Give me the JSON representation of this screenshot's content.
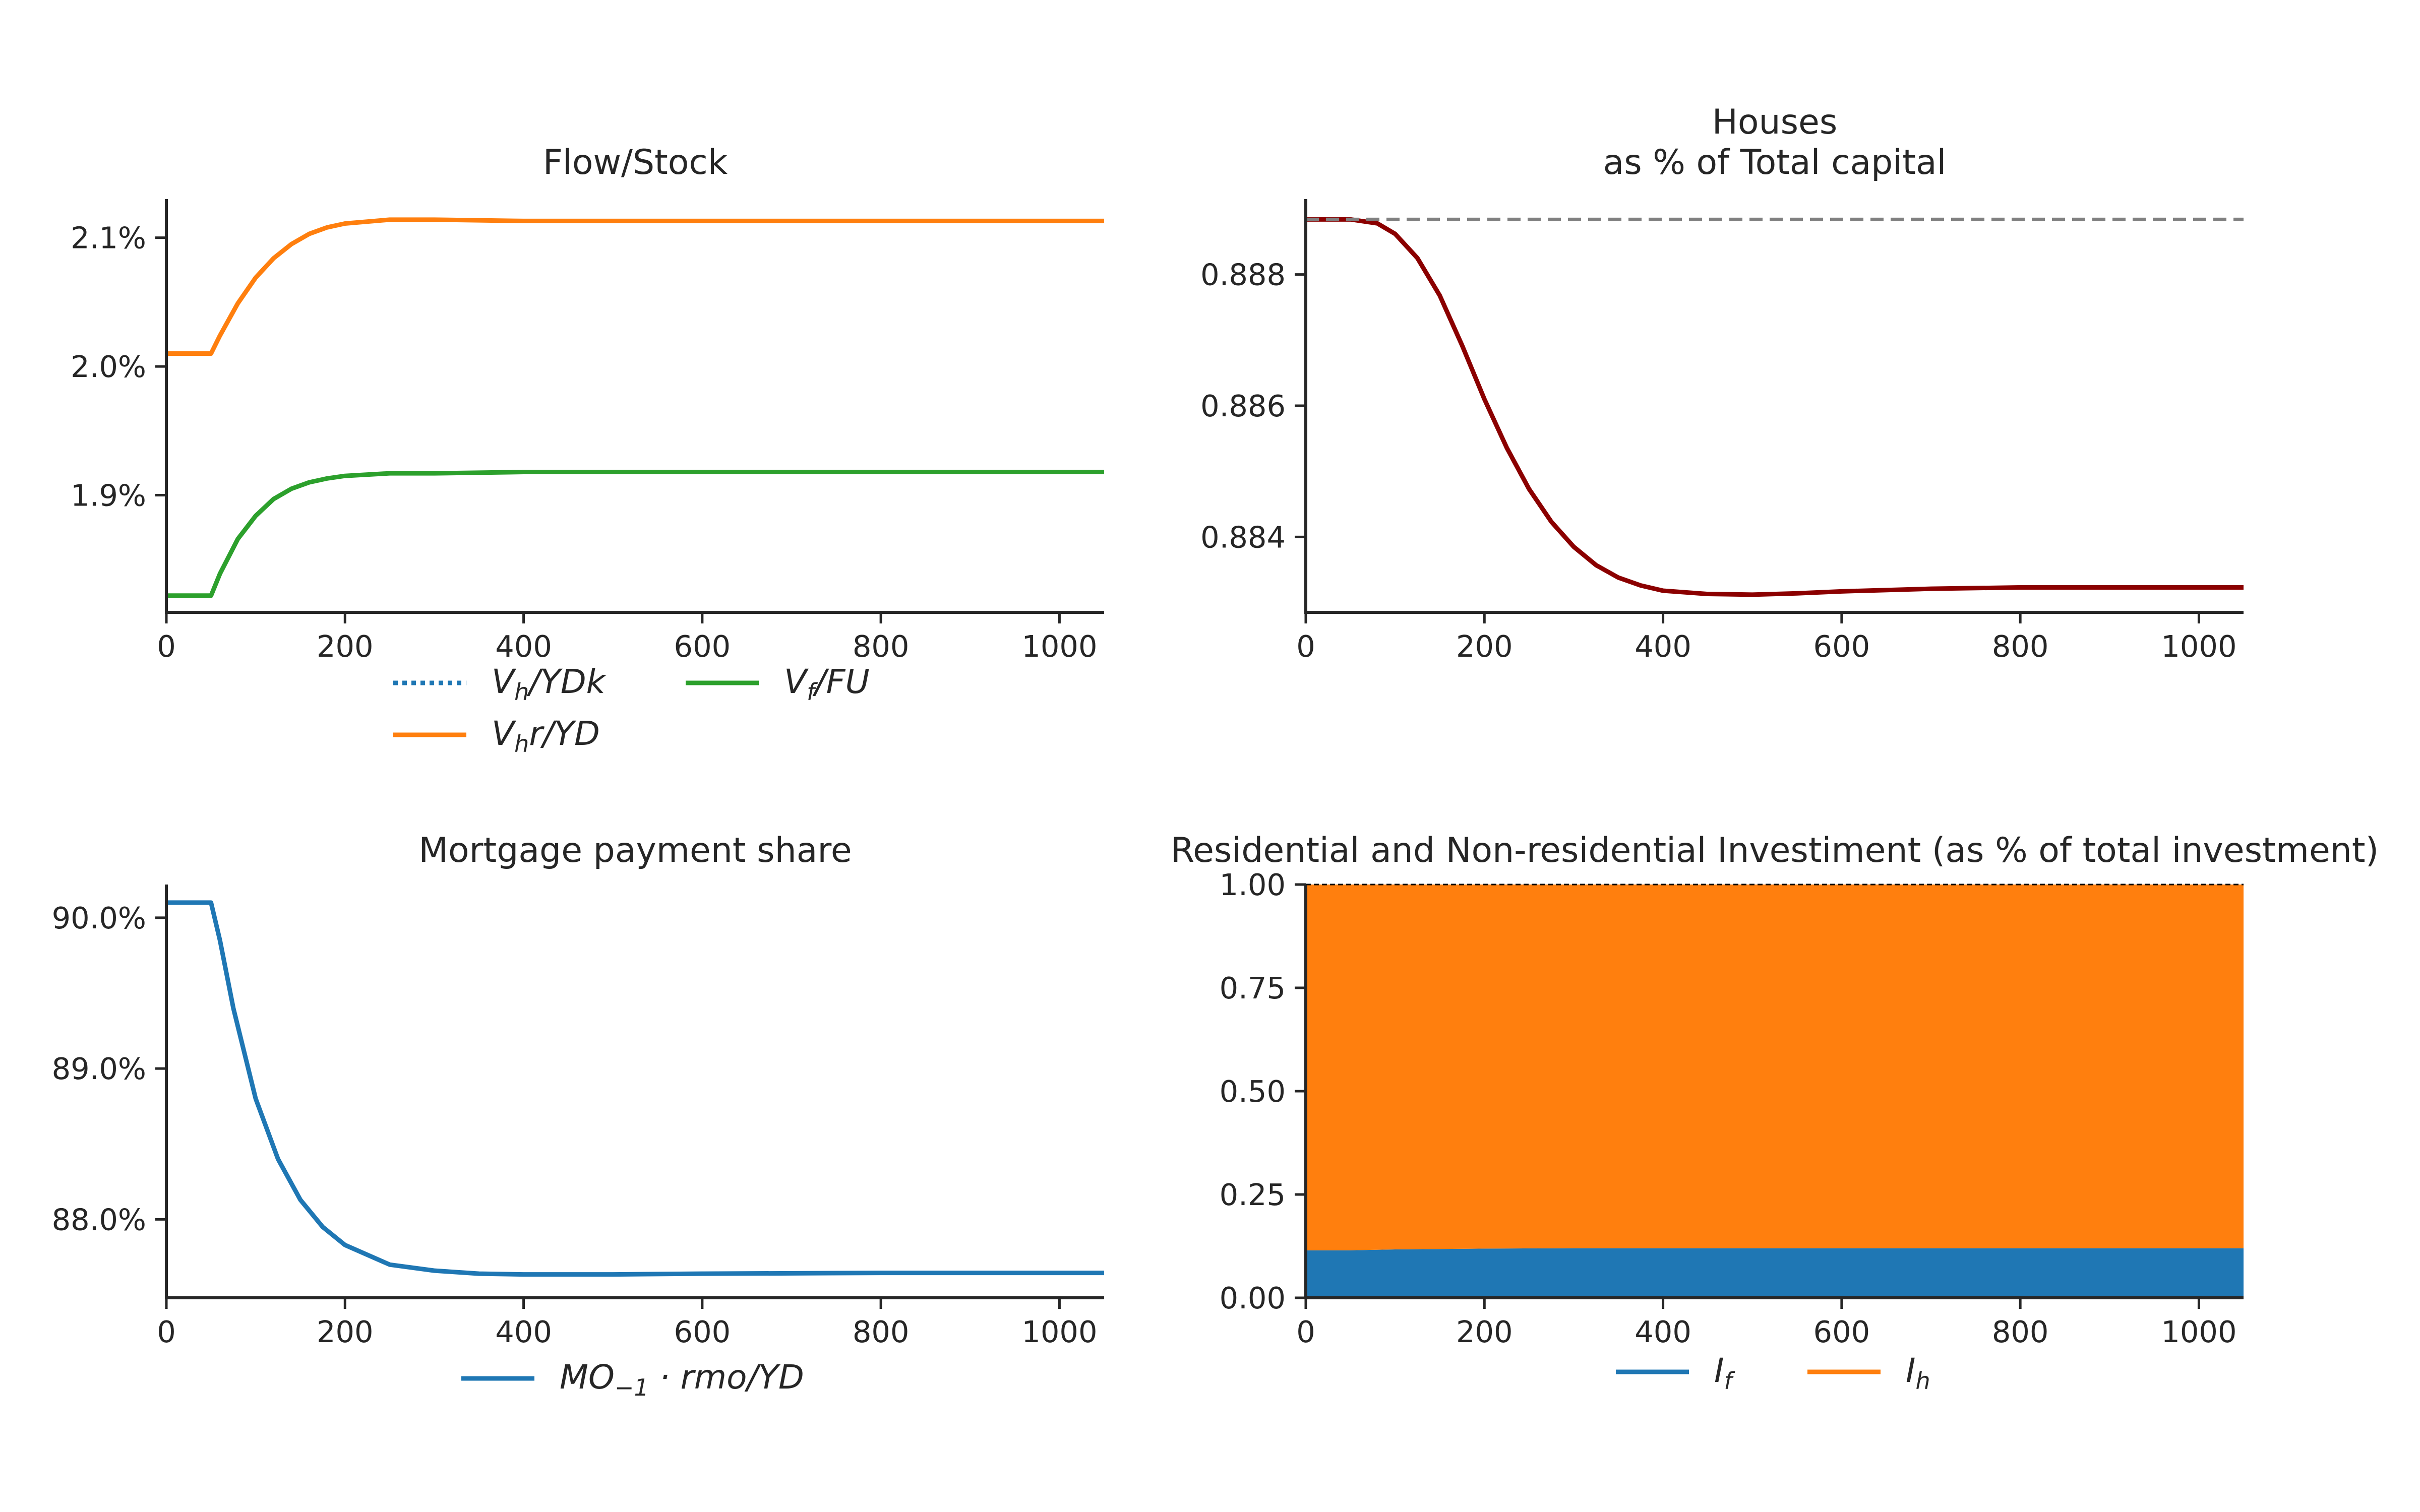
{
  "chart_data": [
    {
      "type": "line",
      "title": "Flow/Stock",
      "xlabel": "",
      "ylabel": "",
      "xlim": [
        0,
        1050
      ],
      "ylim": [
        1.809,
        2.13
      ],
      "x_ticks": [
        0,
        200,
        400,
        600,
        800,
        1000
      ],
      "x_tick_labels": [
        "0",
        "200",
        "400",
        "600",
        "800",
        "1000"
      ],
      "y_ticks": [
        1.9,
        2.0,
        2.1
      ],
      "y_tick_labels": [
        "1.9%",
        "2.0%",
        "2.1%"
      ],
      "grid": false,
      "legend_position": "below",
      "series": [
        {
          "name": "V_h/YDk",
          "legend_main": "V",
          "legend_sub": "h",
          "legend_rest": "/YDk",
          "color": "#1f77b4",
          "style": "dotted",
          "x": [],
          "values": []
        },
        {
          "name": "V_h r/YD",
          "legend_main": "V",
          "legend_sub": "h",
          "legend_rest": "r/YD",
          "color": "#ff7f0e",
          "style": "solid",
          "x": [
            0,
            50,
            60,
            80,
            100,
            120,
            140,
            160,
            180,
            200,
            250,
            300,
            400,
            600,
            800,
            1000,
            1050
          ],
          "values": [
            2.01,
            2.01,
            2.024,
            2.049,
            2.069,
            2.084,
            2.095,
            2.103,
            2.108,
            2.111,
            2.114,
            2.114,
            2.113,
            2.113,
            2.113,
            2.113,
            2.113
          ]
        },
        {
          "name": "V_f/FU",
          "legend_main": "V",
          "legend_sub": "f",
          "legend_rest": "/FU",
          "color": "#2ca02c",
          "style": "solid",
          "x": [
            0,
            50,
            60,
            80,
            100,
            120,
            140,
            160,
            180,
            200,
            250,
            300,
            400,
            600,
            800,
            1000,
            1050
          ],
          "values": [
            1.822,
            1.822,
            1.839,
            1.866,
            1.884,
            1.897,
            1.905,
            1.91,
            1.913,
            1.915,
            1.917,
            1.917,
            1.918,
            1.918,
            1.918,
            1.918,
            1.918
          ]
        }
      ]
    },
    {
      "type": "line",
      "title": "Houses",
      "subtitle": "as % of Total capital",
      "xlabel": "",
      "ylabel": "",
      "xlim": [
        0,
        1050
      ],
      "ylim": [
        0.88285,
        0.88915
      ],
      "x_ticks": [
        0,
        200,
        400,
        600,
        800,
        1000
      ],
      "x_tick_labels": [
        "0",
        "200",
        "400",
        "600",
        "800",
        "1000"
      ],
      "y_ticks": [
        0.884,
        0.886,
        0.888
      ],
      "y_tick_labels": [
        "0.884",
        "0.886",
        "0.888"
      ],
      "grid": false,
      "series": [
        {
          "color": "#8b0000",
          "style": "solid",
          "x": [
            0,
            50,
            80,
            100,
            125,
            150,
            175,
            200,
            225,
            250,
            275,
            300,
            325,
            350,
            375,
            400,
            450,
            500,
            550,
            600,
            700,
            800,
            900,
            1000,
            1050
          ],
          "values": [
            0.88884,
            0.88884,
            0.88878,
            0.88862,
            0.88825,
            0.88768,
            0.88692,
            0.8861,
            0.88536,
            0.88473,
            0.88423,
            0.88385,
            0.88357,
            0.88338,
            0.88326,
            0.88318,
            0.88313,
            0.88312,
            0.88314,
            0.88317,
            0.88321,
            0.88323,
            0.88323,
            0.88323,
            0.88323
          ]
        },
        {
          "color": "#808080",
          "style": "dashed",
          "x": [
            0,
            1050
          ],
          "values": [
            0.88884,
            0.88884
          ]
        }
      ]
    },
    {
      "type": "line",
      "title": "Mortgage payment share",
      "xlabel": "",
      "ylabel": "",
      "xlim": [
        0,
        1050
      ],
      "ylim": [
        87.48,
        90.22
      ],
      "x_ticks": [
        0,
        200,
        400,
        600,
        800,
        1000
      ],
      "x_tick_labels": [
        "0",
        "200",
        "400",
        "600",
        "800",
        "1000"
      ],
      "y_ticks": [
        88.0,
        89.0,
        90.0
      ],
      "y_tick_labels": [
        "88.0%",
        "89.0%",
        "90.0%"
      ],
      "grid": false,
      "legend_position": "below",
      "series": [
        {
          "name": "MO_{-1} · rmo/YD",
          "legend_main": "MO",
          "legend_sub": "−1",
          "legend_rest": " · rmo/YD",
          "color": "#1f77b4",
          "style": "solid",
          "x": [
            0,
            50,
            60,
            75,
            100,
            125,
            150,
            175,
            200,
            250,
            300,
            350,
            400,
            450,
            500,
            600,
            800,
            1000,
            1050
          ],
          "values": [
            90.1,
            90.1,
            89.85,
            89.4,
            88.8,
            88.4,
            88.13,
            87.95,
            87.83,
            87.7,
            87.66,
            87.64,
            87.635,
            87.635,
            87.635,
            87.64,
            87.645,
            87.645,
            87.645
          ]
        }
      ]
    },
    {
      "type": "area",
      "title": "Residential and Non-residential Investiment (as % of total investment)",
      "xlabel": "",
      "ylabel": "",
      "xlim": [
        0,
        1050
      ],
      "ylim": [
        0.0,
        1.0
      ],
      "x_ticks": [
        0,
        200,
        400,
        600,
        800,
        1000
      ],
      "x_tick_labels": [
        "0",
        "200",
        "400",
        "600",
        "800",
        "1000"
      ],
      "y_ticks": [
        0.0,
        0.25,
        0.5,
        0.75,
        1.0
      ],
      "y_tick_labels": [
        "0.00",
        "0.25",
        "0.50",
        "0.75",
        "1.00"
      ],
      "grid": false,
      "legend_position": "below",
      "stacked": true,
      "reference_line": 1.0,
      "series": [
        {
          "name": "I_f",
          "legend_main": "I",
          "legend_sub": "f",
          "legend_rest": "",
          "color": "#1f77b4",
          "x": [
            0,
            50,
            100,
            200,
            300,
            400,
            600,
            800,
            1000,
            1050
          ],
          "values": [
            0.115,
            0.115,
            0.117,
            0.119,
            0.12,
            0.12,
            0.12,
            0.12,
            0.12,
            0.12
          ]
        },
        {
          "name": "I_h",
          "legend_main": "I",
          "legend_sub": "h",
          "legend_rest": "",
          "color": "#ff7f0e",
          "x": [
            0,
            50,
            100,
            200,
            300,
            400,
            600,
            800,
            1000,
            1050
          ],
          "values": [
            0.885,
            0.885,
            0.883,
            0.881,
            0.88,
            0.88,
            0.88,
            0.88,
            0.88,
            0.88
          ]
        }
      ]
    }
  ]
}
